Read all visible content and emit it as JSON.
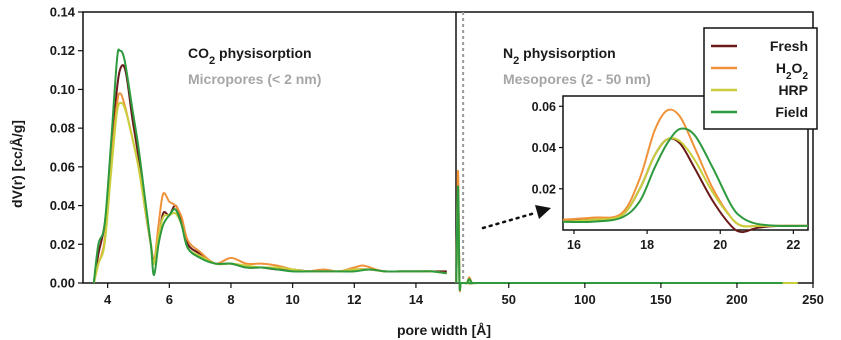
{
  "chart_data": {
    "type": "line",
    "ylabel": "dV(r) [cc/Å/g]",
    "xlabel": "pore width [Å]",
    "ylim": [
      0,
      0.14
    ],
    "yticks": [
      "0.00",
      "0.02",
      "0.04",
      "0.06",
      "0.08",
      "0.10",
      "0.12",
      "0.14"
    ],
    "left_panel": {
      "xlim": [
        3.2,
        15.3
      ],
      "xticks": [
        "4",
        "6",
        "8",
        "10",
        "12",
        "14"
      ],
      "title_prefix": "CO",
      "title_sub": "2",
      "title_suffix": " physisorption",
      "subtitle": "Micropores (< 2 nm)"
    },
    "right_panel": {
      "xlim": [
        15.3,
        250
      ],
      "xticks": [
        "50",
        "100",
        "150",
        "200",
        "250"
      ],
      "title_prefix": "N",
      "title_sub": "2",
      "title_suffix": " physisorption",
      "subtitle": "Mesopores (2 - 50 nm)",
      "divider_x": 20
    },
    "inset": {
      "xlim": [
        15.7,
        22.4
      ],
      "ylim": [
        0,
        0.065
      ],
      "xticks": [
        "16",
        "18",
        "20",
        "22"
      ],
      "yticks": [
        "0.02",
        "0.04",
        "0.06"
      ]
    },
    "legend": {
      "position": "top-right",
      "entries": [
        {
          "label": "Fresh",
          "parts": [
            [
              "Fresh",
              ""
            ]
          ],
          "color": "#6b1a1a"
        },
        {
          "label": "H2O2",
          "parts": [
            [
              "H",
              ""
            ],
            [
              "2",
              "sub"
            ],
            [
              "O",
              ""
            ],
            [
              "2",
              "sub"
            ]
          ],
          "color": "#f0923a"
        },
        {
          "label": "HRP",
          "parts": [
            [
              "HRP",
              ""
            ]
          ],
          "color": "#c9cf3c"
        },
        {
          "label": "Field",
          "parts": [
            [
              "Field",
              ""
            ]
          ],
          "color": "#2e9a3e"
        }
      ]
    },
    "series": [
      {
        "color": "#6b1a1a",
        "micro": [
          [
            3.55,
            0.0
          ],
          [
            3.7,
            0.015
          ],
          [
            3.9,
            0.03
          ],
          [
            4.1,
            0.06
          ],
          [
            4.3,
            0.1
          ],
          [
            4.45,
            0.112
          ],
          [
            4.6,
            0.108
          ],
          [
            4.8,
            0.085
          ],
          [
            5.0,
            0.065
          ],
          [
            5.2,
            0.04
          ],
          [
            5.4,
            0.02
          ],
          [
            5.5,
            0.012
          ],
          [
            5.65,
            0.022
          ],
          [
            5.8,
            0.036
          ],
          [
            6.0,
            0.035
          ],
          [
            6.2,
            0.04
          ],
          [
            6.4,
            0.032
          ],
          [
            6.6,
            0.02
          ],
          [
            7.0,
            0.015
          ],
          [
            7.5,
            0.01
          ],
          [
            8.0,
            0.01
          ],
          [
            8.5,
            0.008
          ],
          [
            9.0,
            0.008
          ],
          [
            9.5,
            0.007
          ],
          [
            10.0,
            0.007
          ],
          [
            10.5,
            0.006
          ],
          [
            11.0,
            0.006
          ],
          [
            11.5,
            0.006
          ],
          [
            12.0,
            0.007
          ],
          [
            12.5,
            0.007
          ],
          [
            13.0,
            0.006
          ],
          [
            13.5,
            0.006
          ],
          [
            14.0,
            0.006
          ],
          [
            14.5,
            0.006
          ],
          [
            15.0,
            0.006
          ]
        ],
        "meso": [
          [
            15.5,
            0.0
          ],
          [
            16.6,
            0.048
          ],
          [
            17.6,
            0.0
          ],
          [
            18.5,
            0.0
          ],
          [
            21.0,
            0.0
          ],
          [
            22.5,
            0.0
          ],
          [
            24,
            0.002
          ],
          [
            26,
            0.0
          ],
          [
            30,
            0.0
          ],
          [
            100,
            0.0
          ],
          [
            230,
            0.0
          ]
        ],
        "inset": [
          [
            15.7,
            0.005
          ],
          [
            16.5,
            0.005
          ],
          [
            17.3,
            0.007
          ],
          [
            17.8,
            0.02
          ],
          [
            18.2,
            0.036
          ],
          [
            18.55,
            0.044
          ],
          [
            18.9,
            0.042
          ],
          [
            19.3,
            0.03
          ],
          [
            19.8,
            0.014
          ],
          [
            20.3,
            0.002
          ],
          [
            20.6,
            -0.001
          ],
          [
            21.0,
            0.001
          ],
          [
            21.6,
            0.002
          ],
          [
            22.4,
            0.002
          ]
        ]
      },
      {
        "color": "#f0923a",
        "micro": [
          [
            3.55,
            0.0
          ],
          [
            3.7,
            0.01
          ],
          [
            3.9,
            0.022
          ],
          [
            4.1,
            0.06
          ],
          [
            4.3,
            0.092
          ],
          [
            4.4,
            0.098
          ],
          [
            4.55,
            0.092
          ],
          [
            4.8,
            0.075
          ],
          [
            5.0,
            0.06
          ],
          [
            5.2,
            0.04
          ],
          [
            5.4,
            0.02
          ],
          [
            5.5,
            0.01
          ],
          [
            5.65,
            0.03
          ],
          [
            5.8,
            0.046
          ],
          [
            6.0,
            0.042
          ],
          [
            6.2,
            0.04
          ],
          [
            6.4,
            0.034
          ],
          [
            6.6,
            0.022
          ],
          [
            7.0,
            0.016
          ],
          [
            7.5,
            0.01
          ],
          [
            8.0,
            0.013
          ],
          [
            8.5,
            0.01
          ],
          [
            9.0,
            0.01
          ],
          [
            9.5,
            0.009
          ],
          [
            10.0,
            0.007
          ],
          [
            10.5,
            0.006
          ],
          [
            11.0,
            0.007
          ],
          [
            11.5,
            0.006
          ],
          [
            12.0,
            0.008
          ],
          [
            12.3,
            0.009
          ],
          [
            12.7,
            0.007
          ],
          [
            13.0,
            0.006
          ],
          [
            13.5,
            0.006
          ],
          [
            14.0,
            0.006
          ],
          [
            14.5,
            0.006
          ],
          [
            15.0,
            0.005
          ]
        ],
        "meso": [
          [
            15.5,
            0.0
          ],
          [
            16.6,
            0.058
          ],
          [
            17.6,
            0.0
          ],
          [
            18.5,
            0.0
          ],
          [
            21.0,
            0.0
          ],
          [
            22.5,
            0.0
          ],
          [
            24,
            0.003
          ],
          [
            26,
            0.0
          ],
          [
            30,
            0.0
          ],
          [
            100,
            0.0
          ],
          [
            230,
            0.0
          ]
        ],
        "inset": [
          [
            15.7,
            0.005
          ],
          [
            16.5,
            0.006
          ],
          [
            17.3,
            0.008
          ],
          [
            17.8,
            0.025
          ],
          [
            18.2,
            0.048
          ],
          [
            18.55,
            0.058
          ],
          [
            18.9,
            0.055
          ],
          [
            19.3,
            0.04
          ],
          [
            19.8,
            0.02
          ],
          [
            20.3,
            0.006
          ],
          [
            20.6,
            0.002
          ],
          [
            21.0,
            0.002
          ],
          [
            21.6,
            0.002
          ],
          [
            22.4,
            0.002
          ]
        ]
      },
      {
        "color": "#c9cf3c",
        "micro": [
          [
            3.55,
            0.0
          ],
          [
            3.7,
            0.01
          ],
          [
            3.9,
            0.02
          ],
          [
            4.1,
            0.055
          ],
          [
            4.3,
            0.088
          ],
          [
            4.45,
            0.093
          ],
          [
            4.6,
            0.088
          ],
          [
            4.8,
            0.075
          ],
          [
            5.0,
            0.06
          ],
          [
            5.2,
            0.04
          ],
          [
            5.4,
            0.02
          ],
          [
            5.5,
            0.01
          ],
          [
            5.65,
            0.024
          ],
          [
            5.8,
            0.034
          ],
          [
            6.0,
            0.035
          ],
          [
            6.2,
            0.036
          ],
          [
            6.4,
            0.03
          ],
          [
            6.6,
            0.018
          ],
          [
            7.0,
            0.014
          ],
          [
            7.5,
            0.01
          ],
          [
            8.0,
            0.01
          ],
          [
            8.5,
            0.009
          ],
          [
            9.0,
            0.008
          ],
          [
            9.5,
            0.008
          ],
          [
            10.0,
            0.007
          ],
          [
            10.5,
            0.006
          ],
          [
            11.0,
            0.006
          ],
          [
            11.5,
            0.006
          ],
          [
            12.0,
            0.007
          ],
          [
            12.5,
            0.007
          ],
          [
            13.0,
            0.006
          ],
          [
            13.5,
            0.006
          ],
          [
            14.0,
            0.006
          ],
          [
            14.5,
            0.006
          ],
          [
            15.0,
            0.005
          ]
        ],
        "meso": [
          [
            15.5,
            0.0
          ],
          [
            16.6,
            0.045
          ],
          [
            17.6,
            0.0
          ],
          [
            18.5,
            0.0
          ],
          [
            21.0,
            0.0
          ],
          [
            22.5,
            0.0
          ],
          [
            24,
            0.002
          ],
          [
            26,
            0.0
          ],
          [
            30,
            0.0
          ],
          [
            100,
            0.0
          ],
          [
            240,
            0.0
          ]
        ],
        "inset": [
          [
            15.7,
            0.004
          ],
          [
            16.5,
            0.005
          ],
          [
            17.3,
            0.007
          ],
          [
            17.8,
            0.02
          ],
          [
            18.2,
            0.036
          ],
          [
            18.55,
            0.044
          ],
          [
            18.9,
            0.043
          ],
          [
            19.3,
            0.034
          ],
          [
            19.8,
            0.018
          ],
          [
            20.3,
            0.006
          ],
          [
            20.6,
            0.002
          ],
          [
            21.0,
            0.002
          ],
          [
            21.6,
            0.002
          ],
          [
            22.4,
            0.002
          ]
        ]
      },
      {
        "color": "#2e9a3e",
        "micro": [
          [
            3.55,
            0.0
          ],
          [
            3.7,
            0.02
          ],
          [
            3.9,
            0.03
          ],
          [
            4.1,
            0.07
          ],
          [
            4.3,
            0.115
          ],
          [
            4.4,
            0.12
          ],
          [
            4.55,
            0.115
          ],
          [
            4.8,
            0.09
          ],
          [
            5.0,
            0.07
          ],
          [
            5.2,
            0.045
          ],
          [
            5.4,
            0.02
          ],
          [
            5.5,
            0.004
          ],
          [
            5.65,
            0.02
          ],
          [
            5.8,
            0.03
          ],
          [
            6.0,
            0.035
          ],
          [
            6.2,
            0.038
          ],
          [
            6.4,
            0.03
          ],
          [
            6.6,
            0.018
          ],
          [
            7.0,
            0.013
          ],
          [
            7.5,
            0.01
          ],
          [
            8.0,
            0.01
          ],
          [
            8.5,
            0.008
          ],
          [
            9.0,
            0.008
          ],
          [
            9.5,
            0.007
          ],
          [
            10.0,
            0.006
          ],
          [
            10.5,
            0.006
          ],
          [
            11.0,
            0.006
          ],
          [
            11.5,
            0.006
          ],
          [
            12.0,
            0.006
          ],
          [
            12.5,
            0.007
          ],
          [
            13.0,
            0.006
          ],
          [
            13.5,
            0.006
          ],
          [
            14.0,
            0.006
          ],
          [
            14.5,
            0.006
          ],
          [
            15.0,
            0.005
          ]
        ],
        "meso": [
          [
            15.5,
            0.0
          ],
          [
            16.6,
            0.05
          ],
          [
            17.6,
            0.0
          ],
          [
            18.5,
            0.0
          ],
          [
            21.0,
            0.0
          ],
          [
            22.5,
            0.0
          ],
          [
            24,
            0.002
          ],
          [
            26,
            0.0
          ],
          [
            30,
            0.0
          ],
          [
            100,
            0.0
          ],
          [
            230,
            0.0
          ]
        ],
        "inset": [
          [
            15.7,
            0.004
          ],
          [
            16.5,
            0.004
          ],
          [
            17.3,
            0.006
          ],
          [
            17.8,
            0.014
          ],
          [
            18.2,
            0.03
          ],
          [
            18.55,
            0.042
          ],
          [
            18.9,
            0.049
          ],
          [
            19.3,
            0.046
          ],
          [
            19.8,
            0.03
          ],
          [
            20.3,
            0.012
          ],
          [
            20.6,
            0.006
          ],
          [
            21.0,
            0.003
          ],
          [
            21.6,
            0.002
          ],
          [
            22.4,
            0.002
          ]
        ]
      }
    ]
  }
}
